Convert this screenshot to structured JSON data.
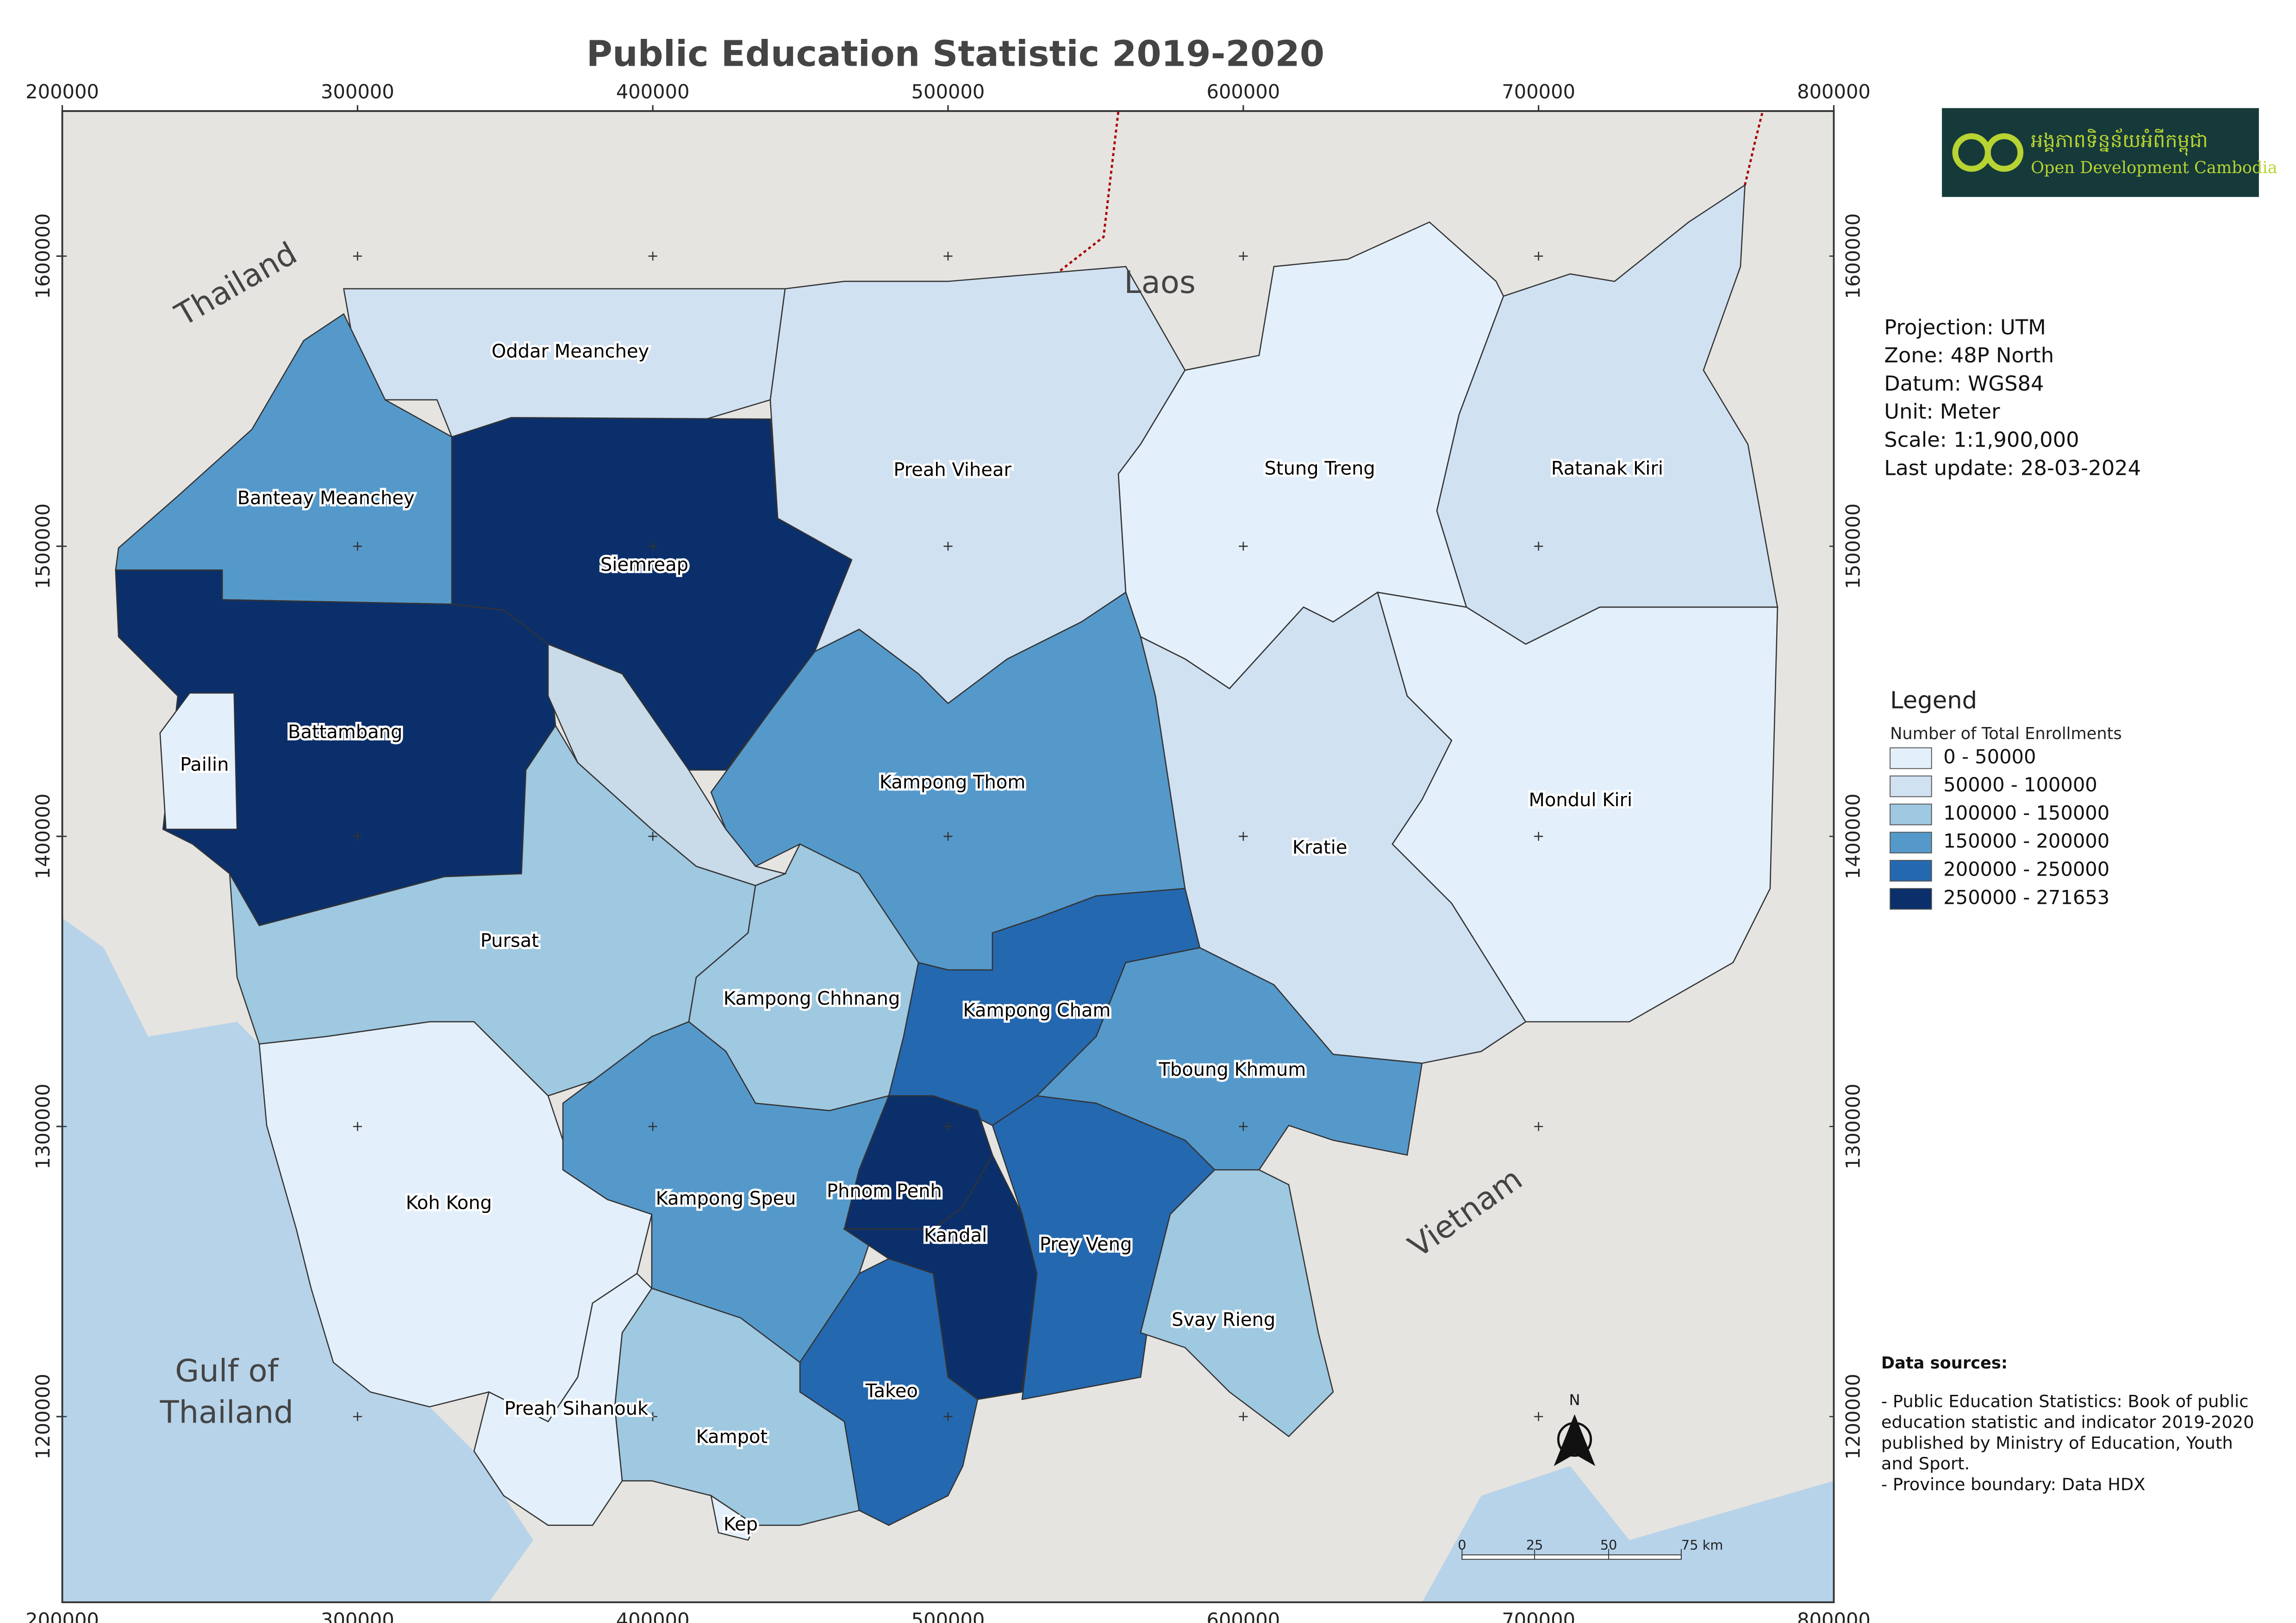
{
  "title": "Public Education Statistic 2019-2020",
  "map_grid": {
    "xlim": [
      200000,
      800000
    ],
    "ylim": [
      1136000,
      1650000
    ],
    "xticks": [
      200000,
      300000,
      400000,
      500000,
      600000,
      700000,
      800000
    ],
    "yticks": [
      1200000,
      1300000,
      1400000,
      1500000,
      1600000
    ]
  },
  "provinces": [
    {
      "name": "Oddar Meanchey",
      "color": "#d0e1f2"
    },
    {
      "name": "Banteay Meanchey",
      "color": "#5599cb"
    },
    {
      "name": "Siemreap",
      "color": "#0b2f6b"
    },
    {
      "name": "Battambang",
      "color": "#0b2f6b"
    },
    {
      "name": "Pailin",
      "color": "#e3f0fb"
    },
    {
      "name": "Preah Vihear",
      "color": "#d0e1f2"
    },
    {
      "name": "Stung Treng",
      "color": "#e3f0fb"
    },
    {
      "name": "Ratanak Kiri",
      "color": "#d0e1f2"
    },
    {
      "name": "Kampong Thom",
      "color": "#5599cb"
    },
    {
      "name": "Kratie",
      "color": "#d0e1f2"
    },
    {
      "name": "Mondul Kiri",
      "color": "#e3f0fb"
    },
    {
      "name": "Pursat",
      "color": "#9fc8e1"
    },
    {
      "name": "Kampong Chhnang",
      "color": "#9fc8e1"
    },
    {
      "name": "Kampong Cham",
      "color": "#2468b0"
    },
    {
      "name": "Tboung Khmum",
      "color": "#5599cb"
    },
    {
      "name": "Koh Kong",
      "color": "#e3f0fb"
    },
    {
      "name": "Kampong Speu",
      "color": "#5599cb"
    },
    {
      "name": "Phnom Penh",
      "color": "#0b2f6b"
    },
    {
      "name": "Kandal",
      "color": "#0b2f6b"
    },
    {
      "name": "Prey Veng",
      "color": "#2468b0"
    },
    {
      "name": "Svay Rieng",
      "color": "#9fc8e1"
    },
    {
      "name": "Takeo",
      "color": "#2468b0"
    },
    {
      "name": "Kampot",
      "color": "#9fc8e1"
    },
    {
      "name": "Preah Sihanouk",
      "color": "#e3f0fb"
    },
    {
      "name": "Kep",
      "color": "#e3f0fb"
    }
  ],
  "countries": [
    "Thailand",
    "Laos",
    "Vietnam"
  ],
  "sea": [
    "Gulf of",
    "Thailand"
  ],
  "logo": {
    "khmer": "អង្គភាពទិន្នន័យអំពីកម្ពុជា",
    "english": "Open Development Cambodia"
  },
  "info": [
    "Projection: UTM",
    "Zone: 48P North",
    "Datum: WGS84",
    "Unit: Meter",
    "Scale: 1:1,900,000",
    "Last update:  28-03-2024"
  ],
  "legend": {
    "title": "Legend",
    "subtitle": "Number of Total Enrollments",
    "classes": [
      {
        "label": "0 - 50000",
        "color": "#e3f0fb"
      },
      {
        "label": "50000 - 100000",
        "color": "#d0e1f2"
      },
      {
        "label": "100000 - 150000",
        "color": "#9fc8e1"
      },
      {
        "label": "150000 - 200000",
        "color": "#5599cb"
      },
      {
        "label": "200000 - 250000",
        "color": "#2468b0"
      },
      {
        "label": "250000 - 271653",
        "color": "#0b2f6b"
      }
    ]
  },
  "sources": {
    "heading": "Data sources:",
    "lines": [
      "- Public Education Statistics: Book of public",
      "education statistic and indicator 2019-2020",
      "published by Ministry of Education, Youth",
      "and Sport.",
      "- Province boundary: Data HDX"
    ]
  },
  "scale_bar": [
    "0",
    "25",
    "50",
    "75 km"
  ],
  "north": "N"
}
